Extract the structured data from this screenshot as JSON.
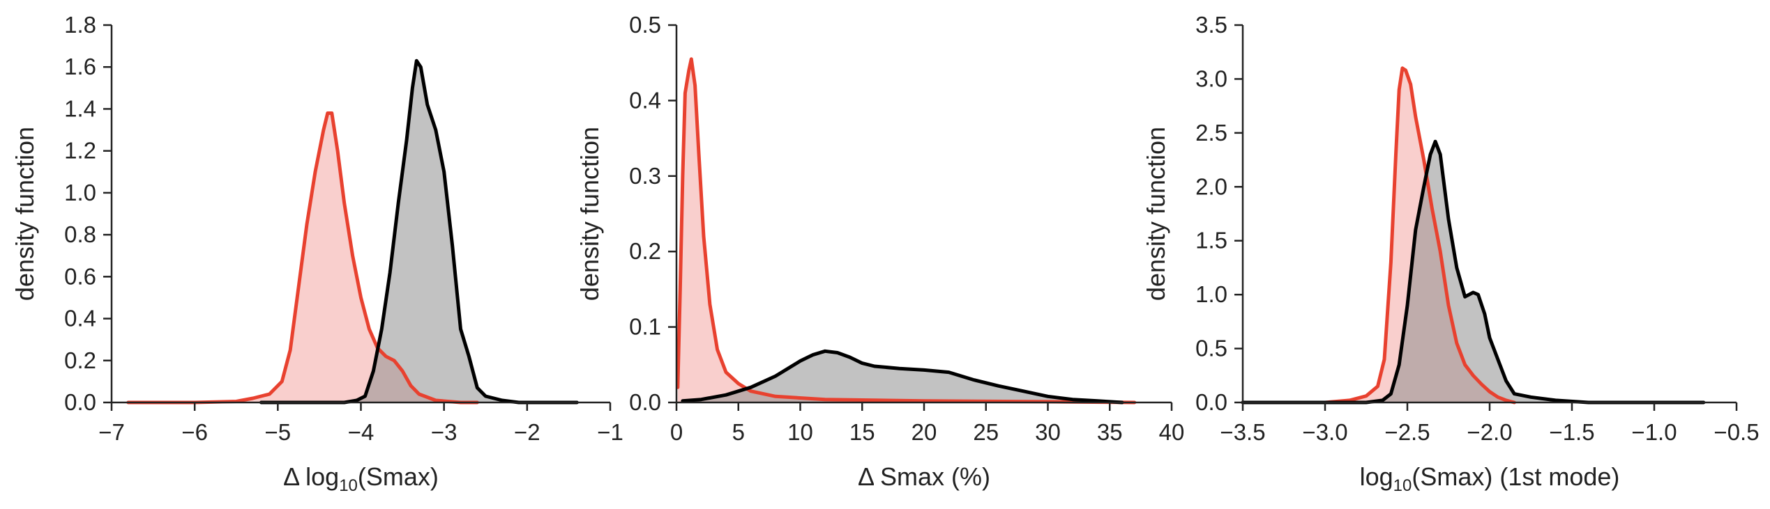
{
  "colors": {
    "red_line": "#e8412f",
    "red_fill": "#f7c3c0",
    "black_line": "#000000",
    "gray_fill": "#8f8f8f"
  },
  "chart_data": [
    {
      "type": "area",
      "xlabel": "Δ log10(Smax)",
      "xlabel_parts": {
        "prefix": "Δ log",
        "sub": "10",
        "suffix": "(Smax)"
      },
      "ylabel": "density function",
      "xlim": [
        -7,
        -1
      ],
      "ylim": [
        0,
        1.8
      ],
      "xticks": [
        -7,
        -6,
        -5,
        -4,
        -3,
        -2,
        -1
      ],
      "xtick_labels": [
        "−7",
        "−6",
        "−5",
        "−4",
        "−3",
        "−2",
        "−1"
      ],
      "yticks": [
        0,
        0.2,
        0.4,
        0.6,
        0.8,
        1.0,
        1.2,
        1.4,
        1.6,
        1.8
      ],
      "ytick_labels": [
        "0.0",
        "0.2",
        "0.4",
        "0.6",
        "0.8",
        "1.0",
        "1.2",
        "1.4",
        "1.6",
        "1.8"
      ],
      "series": [
        {
          "color": "red",
          "points": [
            [
              -6.8,
              0
            ],
            [
              -6,
              0
            ],
            [
              -5.5,
              0.005
            ],
            [
              -5.3,
              0.02
            ],
            [
              -5.1,
              0.04
            ],
            [
              -4.95,
              0.1
            ],
            [
              -4.85,
              0.25
            ],
            [
              -4.75,
              0.55
            ],
            [
              -4.65,
              0.85
            ],
            [
              -4.55,
              1.1
            ],
            [
              -4.45,
              1.3
            ],
            [
              -4.4,
              1.38
            ],
            [
              -4.35,
              1.38
            ],
            [
              -4.28,
              1.2
            ],
            [
              -4.2,
              0.95
            ],
            [
              -4.1,
              0.7
            ],
            [
              -4.0,
              0.5
            ],
            [
              -3.9,
              0.35
            ],
            [
              -3.8,
              0.26
            ],
            [
              -3.7,
              0.22
            ],
            [
              -3.6,
              0.2
            ],
            [
              -3.5,
              0.15
            ],
            [
              -3.4,
              0.08
            ],
            [
              -3.3,
              0.04
            ],
            [
              -3.1,
              0.01
            ],
            [
              -2.8,
              0
            ],
            [
              -2.6,
              0
            ]
          ]
        },
        {
          "color": "black",
          "points": [
            [
              -5.2,
              0
            ],
            [
              -4.2,
              0
            ],
            [
              -4.05,
              0.01
            ],
            [
              -3.95,
              0.03
            ],
            [
              -3.85,
              0.15
            ],
            [
              -3.75,
              0.35
            ],
            [
              -3.65,
              0.62
            ],
            [
              -3.55,
              0.95
            ],
            [
              -3.45,
              1.25
            ],
            [
              -3.38,
              1.5
            ],
            [
              -3.33,
              1.63
            ],
            [
              -3.28,
              1.6
            ],
            [
              -3.2,
              1.42
            ],
            [
              -3.1,
              1.3
            ],
            [
              -3.0,
              1.1
            ],
            [
              -2.9,
              0.75
            ],
            [
              -2.8,
              0.35
            ],
            [
              -2.7,
              0.22
            ],
            [
              -2.6,
              0.07
            ],
            [
              -2.5,
              0.03
            ],
            [
              -2.3,
              0.01
            ],
            [
              -2.1,
              0
            ],
            [
              -1.4,
              0
            ]
          ]
        }
      ]
    },
    {
      "type": "area",
      "xlabel": "Δ Smax (%)",
      "ylabel": "density function",
      "xlim": [
        0,
        40
      ],
      "ylim": [
        0,
        0.5
      ],
      "xticks": [
        0,
        5,
        10,
        15,
        20,
        25,
        30,
        35,
        40
      ],
      "xtick_labels": [
        "0",
        "5",
        "10",
        "15",
        "20",
        "25",
        "30",
        "35",
        "40"
      ],
      "yticks": [
        0,
        0.1,
        0.2,
        0.3,
        0.4,
        0.5
      ],
      "ytick_labels": [
        "0.0",
        "0.1",
        "0.2",
        "0.3",
        "0.4",
        "0.5"
      ],
      "series": [
        {
          "color": "red",
          "points": [
            [
              0.1,
              0.02
            ],
            [
              0.3,
              0.15
            ],
            [
              0.5,
              0.3
            ],
            [
              0.7,
              0.41
            ],
            [
              1.0,
              0.44
            ],
            [
              1.2,
              0.455
            ],
            [
              1.5,
              0.42
            ],
            [
              1.8,
              0.33
            ],
            [
              2.2,
              0.22
            ],
            [
              2.7,
              0.13
            ],
            [
              3.3,
              0.07
            ],
            [
              4,
              0.04
            ],
            [
              5,
              0.025
            ],
            [
              6,
              0.015
            ],
            [
              8,
              0.008
            ],
            [
              12,
              0.004
            ],
            [
              20,
              0.002
            ],
            [
              30,
              0.001
            ],
            [
              37,
              0
            ]
          ]
        },
        {
          "color": "black",
          "points": [
            [
              0.5,
              0.002
            ],
            [
              2,
              0.004
            ],
            [
              4,
              0.01
            ],
            [
              6,
              0.02
            ],
            [
              8,
              0.035
            ],
            [
              10,
              0.055
            ],
            [
              11,
              0.063
            ],
            [
              12,
              0.068
            ],
            [
              13,
              0.066
            ],
            [
              14,
              0.06
            ],
            [
              15,
              0.052
            ],
            [
              16,
              0.048
            ],
            [
              18,
              0.045
            ],
            [
              20,
              0.043
            ],
            [
              22,
              0.04
            ],
            [
              24,
              0.03
            ],
            [
              26,
              0.022
            ],
            [
              28,
              0.015
            ],
            [
              30,
              0.008
            ],
            [
              32,
              0.004
            ],
            [
              34,
              0.002
            ],
            [
              36,
              0
            ]
          ]
        }
      ]
    },
    {
      "type": "area",
      "xlabel": "log10(Smax) (1st mode)",
      "xlabel_parts": {
        "prefix": "log",
        "sub": "10",
        "suffix": "(Smax) (1st mode)"
      },
      "ylabel": "density function",
      "xlim": [
        -3.5,
        -0.5
      ],
      "ylim": [
        0,
        3.5
      ],
      "xticks": [
        -3.5,
        -3.0,
        -2.5,
        -2.0,
        -1.5,
        -1.0,
        -0.5
      ],
      "xtick_labels": [
        "−3.5",
        "−3.0",
        "−2.5",
        "−2.0",
        "−1.5",
        "−1.0",
        "−0.5"
      ],
      "yticks": [
        0,
        0.5,
        1.0,
        1.5,
        2.0,
        2.5,
        3.0,
        3.5
      ],
      "ytick_labels": [
        "0.0",
        "0.5",
        "1.0",
        "1.5",
        "2.0",
        "2.5",
        "3.0",
        "3.5"
      ],
      "series": [
        {
          "color": "red",
          "points": [
            [
              -3.5,
              0
            ],
            [
              -3.0,
              0
            ],
            [
              -2.85,
              0.02
            ],
            [
              -2.75,
              0.06
            ],
            [
              -2.68,
              0.15
            ],
            [
              -2.64,
              0.4
            ],
            [
              -2.6,
              1.3
            ],
            [
              -2.57,
              2.3
            ],
            [
              -2.55,
              2.9
            ],
            [
              -2.53,
              3.1
            ],
            [
              -2.51,
              3.08
            ],
            [
              -2.48,
              2.95
            ],
            [
              -2.45,
              2.65
            ],
            [
              -2.4,
              2.25
            ],
            [
              -2.35,
              1.8
            ],
            [
              -2.3,
              1.4
            ],
            [
              -2.25,
              0.9
            ],
            [
              -2.2,
              0.55
            ],
            [
              -2.15,
              0.35
            ],
            [
              -2.1,
              0.25
            ],
            [
              -2.05,
              0.17
            ],
            [
              -2.0,
              0.1
            ],
            [
              -1.95,
              0.05
            ],
            [
              -1.9,
              0.02
            ],
            [
              -1.85,
              0
            ]
          ]
        },
        {
          "color": "black",
          "points": [
            [
              -3.5,
              0
            ],
            [
              -2.75,
              0
            ],
            [
              -2.65,
              0.02
            ],
            [
              -2.6,
              0.08
            ],
            [
              -2.55,
              0.35
            ],
            [
              -2.5,
              0.9
            ],
            [
              -2.45,
              1.6
            ],
            [
              -2.4,
              2.0
            ],
            [
              -2.36,
              2.3
            ],
            [
              -2.33,
              2.42
            ],
            [
              -2.3,
              2.3
            ],
            [
              -2.25,
              1.7
            ],
            [
              -2.2,
              1.25
            ],
            [
              -2.15,
              0.98
            ],
            [
              -2.1,
              1.02
            ],
            [
              -2.07,
              1.0
            ],
            [
              -2.03,
              0.82
            ],
            [
              -2.0,
              0.6
            ],
            [
              -1.95,
              0.4
            ],
            [
              -1.9,
              0.2
            ],
            [
              -1.85,
              0.08
            ],
            [
              -1.75,
              0.05
            ],
            [
              -1.6,
              0.02
            ],
            [
              -1.4,
              0
            ],
            [
              -0.7,
              0
            ]
          ]
        }
      ]
    }
  ]
}
